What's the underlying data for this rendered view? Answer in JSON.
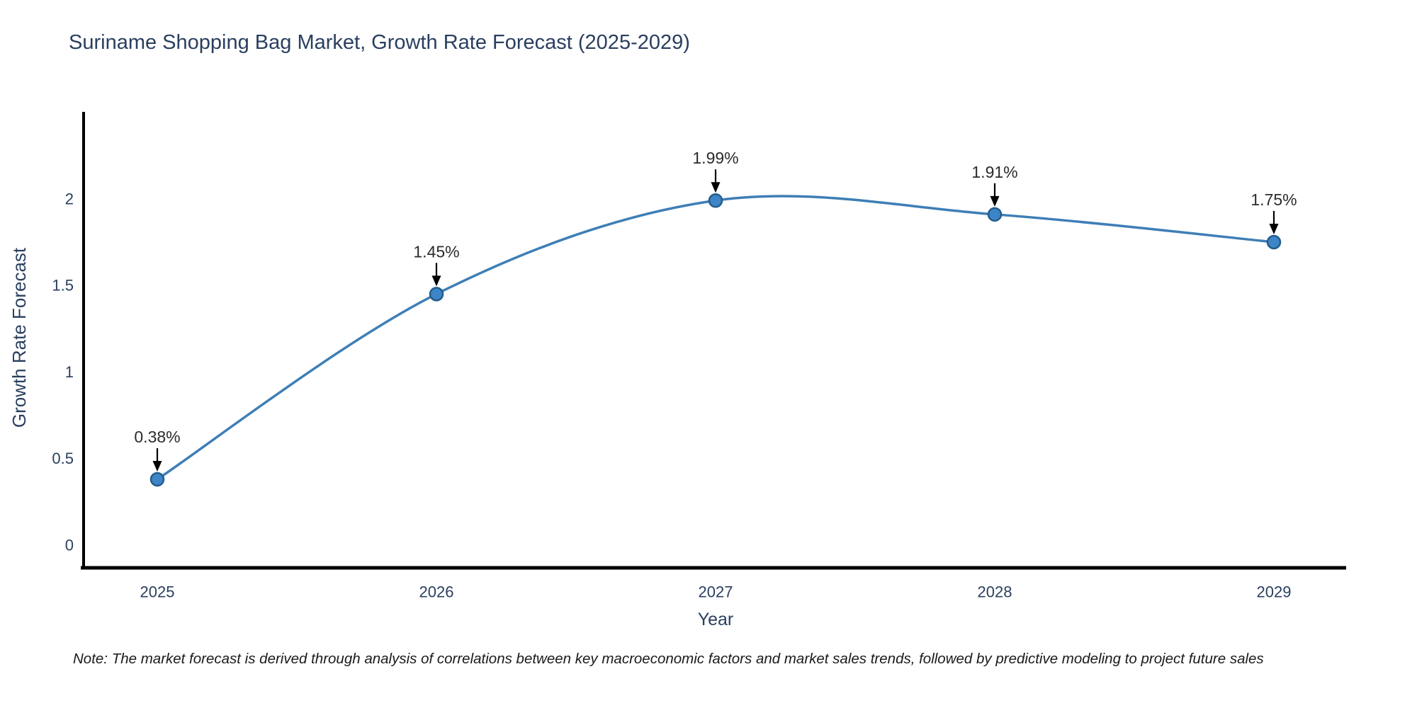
{
  "chart_data": {
    "type": "line",
    "title": "Suriname Shopping Bag Market, Growth Rate Forecast (2025-2029)",
    "xlabel": "Year",
    "ylabel": "Growth Rate Forecast",
    "categories": [
      "2025",
      "2026",
      "2027",
      "2028",
      "2029"
    ],
    "series": [
      {
        "name": "Growth Rate Forecast",
        "values": [
          0.38,
          1.45,
          1.99,
          1.91,
          1.75
        ],
        "point_labels": [
          "0.38%",
          "1.45%",
          "1.99%",
          "1.91%",
          "1.75%"
        ]
      }
    ],
    "yticks": [
      0,
      0.5,
      1,
      1.5,
      2
    ],
    "ylim": [
      -0.14,
      2.5
    ],
    "line_shape": "spline",
    "grid": false,
    "legend_position": "none",
    "note": "Note: The market forecast is derived through analysis of correlations between key macroeconomic factors and market sales trends, followed by predictive modeling to project future sales",
    "colors": {
      "line": "#3e7eb6",
      "marker_fill": "#3d85c6",
      "marker_edge": "#235d8c",
      "axis": "#000000",
      "axis_text": "#2a3f5f",
      "annotation_text": "#2b2b2b",
      "arrow": "#000000"
    }
  }
}
